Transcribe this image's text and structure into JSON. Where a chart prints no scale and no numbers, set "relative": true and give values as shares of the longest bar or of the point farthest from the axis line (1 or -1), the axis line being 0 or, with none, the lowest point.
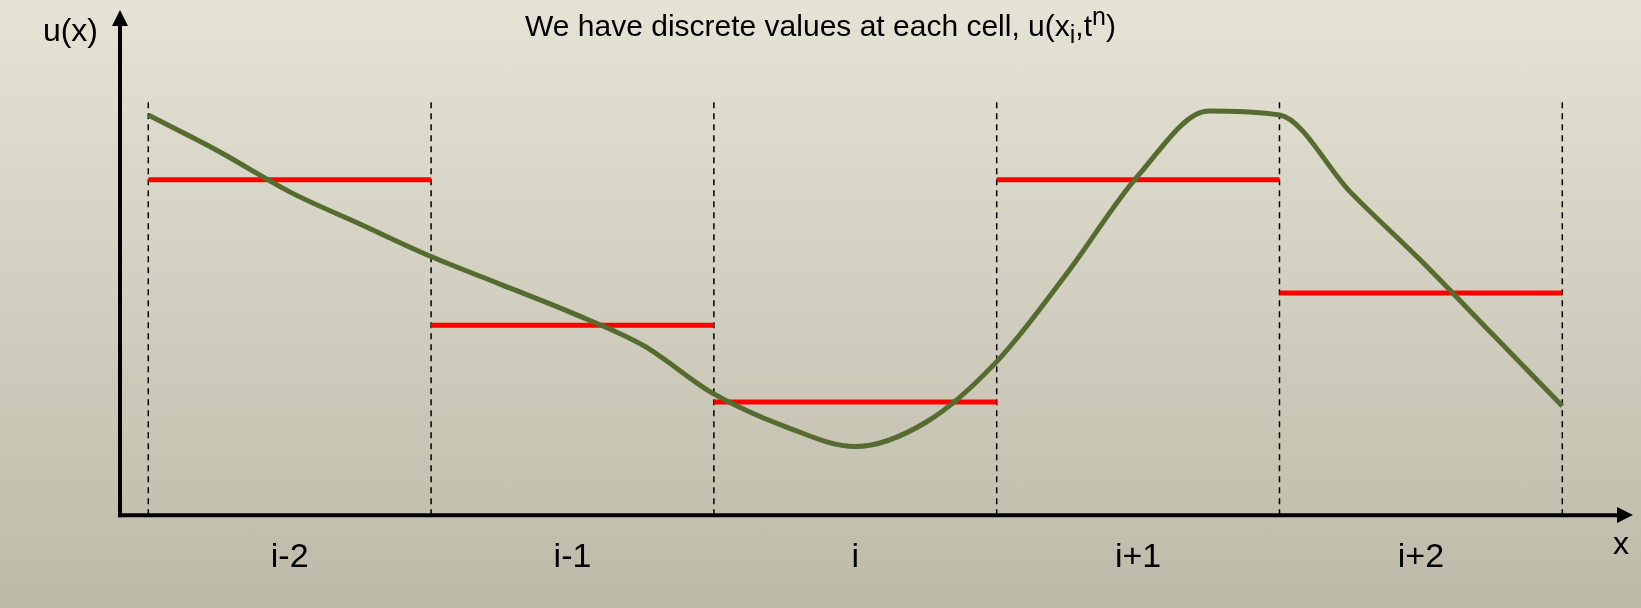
{
  "chart_data": {
    "type": "line",
    "title": "We have discrete values at each cell, u(x$_{i}$,t$^{n}$)",
    "xlabel": "x",
    "ylabel": "u(x)",
    "relative": true,
    "grid": "x",
    "line_style": "solid",
    "marker": "none",
    "categories": [
      null,
      null,
      "i-2",
      null,
      null,
      null,
      "i-1",
      null,
      null,
      null,
      "i",
      null,
      null,
      null,
      "i+1",
      null,
      null,
      null,
      "i+2",
      null,
      null
    ],
    "series": [
      {
        "type": "line",
        "color": "#ff0000",
        "values": [
          0.83,
          0.83,
          0.83,
          0.83,
          0.83,
          null,
          null,
          null,
          null,
          null,
          null,
          null,
          null,
          null,
          null,
          null,
          null,
          null,
          null,
          null,
          null
        ]
      },
      {
        "type": "line",
        "color": "#ff0000",
        "values": [
          null,
          null,
          null,
          null,
          0.47,
          0.47,
          0.47,
          0.47,
          0.47,
          null,
          null,
          null,
          null,
          null,
          null,
          null,
          null,
          null,
          null,
          null,
          null
        ]
      },
      {
        "type": "line",
        "color": "#ff0000",
        "values": [
          null,
          null,
          null,
          null,
          null,
          null,
          null,
          null,
          0.28,
          0.28,
          0.28,
          0.28,
          0.28,
          null,
          null,
          null,
          null,
          null,
          null,
          null,
          null
        ]
      },
      {
        "type": "line",
        "color": "#ff0000",
        "values": [
          null,
          null,
          null,
          null,
          null,
          null,
          null,
          null,
          null,
          null,
          null,
          null,
          0.83,
          0.83,
          0.83,
          0.83,
          0.83,
          null,
          null,
          null,
          null
        ]
      },
      {
        "type": "line",
        "color": "#ff0000",
        "values": [
          null,
          null,
          null,
          null,
          null,
          null,
          null,
          null,
          null,
          null,
          null,
          null,
          null,
          null,
          null,
          null,
          0.55,
          0.55,
          0.55,
          0.55,
          0.55
        ]
      },
      {
        "type": "line",
        "color": "#556b2f",
        "values": [
          0.99,
          0.9,
          0.8,
          0.72,
          0.64,
          0.57,
          0.5,
          0.42,
          0.3,
          0.22,
          0.17,
          0.23,
          0.38,
          0.6,
          0.84,
          1.0,
          0.99,
          0.8,
          0.63,
          0.45,
          0.27
        ]
      }
    ]
  }
}
